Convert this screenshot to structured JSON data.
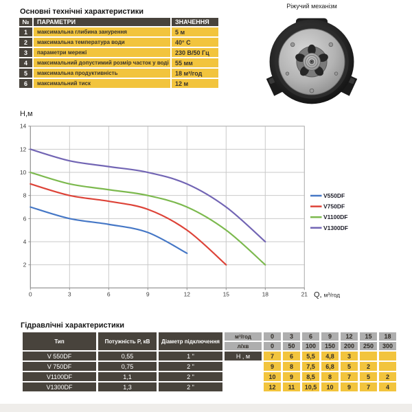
{
  "palette": {
    "dark": "#48433c",
    "yellow": "#f2c43d",
    "gray": "#aeaeae"
  },
  "main_table": {
    "title": "Основні технічні характеристики",
    "headers": {
      "num": "№",
      "param": "ПАРАМЕТРИ",
      "value": "ЗНАЧЕННЯ"
    },
    "rows": [
      {
        "num": "1",
        "param": "максимальна глибина занурення",
        "value": "5 м"
      },
      {
        "num": "2",
        "param": "максимальна температура води",
        "value": "40° C"
      },
      {
        "num": "3",
        "param": "параметри мережі",
        "value": "230 В/50 Гц"
      },
      {
        "num": "4",
        "param": "максимальний допустимий розмір часток у воді",
        "value": "55 мм"
      },
      {
        "num": "5",
        "param": "максимальна продуктивність",
        "value": "18 м³/год"
      },
      {
        "num": "6",
        "param": "максимальний тиск",
        "value": "12 м"
      }
    ]
  },
  "photo": {
    "caption": "Ріжучий механізм"
  },
  "chart_data": {
    "type": "line",
    "title": "",
    "xlabel": "Q, м³/год",
    "ylabel": "Н,м",
    "xlim": [
      0,
      21
    ],
    "ylim": [
      0,
      14
    ],
    "xticks": [
      0,
      3,
      6,
      9,
      12,
      15,
      18,
      21
    ],
    "yticks": [
      2,
      4,
      6,
      8,
      10,
      12,
      14
    ],
    "grid": true,
    "legend_position": "right",
    "series": [
      {
        "name": "V550DF",
        "color": "#4577c6",
        "x": [
          0,
          3,
          6,
          9,
          12
        ],
        "y": [
          7,
          6,
          5.5,
          4.8,
          3
        ]
      },
      {
        "name": "V750DF",
        "color": "#dd4338",
        "x": [
          0,
          3,
          6,
          9,
          12,
          15
        ],
        "y": [
          9,
          8,
          7.5,
          6.8,
          5,
          2
        ]
      },
      {
        "name": "V1100DF",
        "color": "#7cb94e",
        "x": [
          0,
          3,
          6,
          9,
          12,
          15,
          18
        ],
        "y": [
          10,
          9,
          8.5,
          8,
          7,
          5,
          2
        ]
      },
      {
        "name": "V1300DF",
        "color": "#7265b4",
        "x": [
          0,
          3,
          6,
          9,
          12,
          15,
          18
        ],
        "y": [
          12,
          11,
          10.5,
          10,
          9,
          7,
          4
        ]
      }
    ]
  },
  "hydraulic_table": {
    "title": "Гідравлічні характеристики",
    "col_headers": {
      "type": "Тип",
      "power": "Потужність P, кВ",
      "diameter": "Діаметр підключення"
    },
    "unit_rows": [
      {
        "label": "м³/год",
        "values": [
          "0",
          "3",
          "6",
          "9",
          "12",
          "15",
          "18"
        ]
      },
      {
        "label": "л/хв",
        "values": [
          "0",
          "50",
          "100",
          "150",
          "200",
          "250",
          "300"
        ]
      }
    ],
    "h_label": "Н , м",
    "rows": [
      {
        "type": "V 550DF",
        "power": "0,55",
        "diameter": "1 \"",
        "values": [
          "7",
          "6",
          "5,5",
          "4,8",
          "3",
          "",
          ""
        ]
      },
      {
        "type": "V 750DF",
        "power": "0,75",
        "diameter": "2 \"",
        "values": [
          "9",
          "8",
          "7,5",
          "6,8",
          "5",
          "2",
          ""
        ]
      },
      {
        "type": "V1100DF",
        "power": "1,1",
        "diameter": "2 \"",
        "values": [
          "10",
          "9",
          "8,5",
          "8",
          "7",
          "5",
          "2"
        ]
      },
      {
        "type": "V1300DF",
        "power": "1,3",
        "diameter": "2 \"",
        "values": [
          "12",
          "11",
          "10,5",
          "10",
          "9",
          "7",
          "4"
        ]
      }
    ]
  }
}
